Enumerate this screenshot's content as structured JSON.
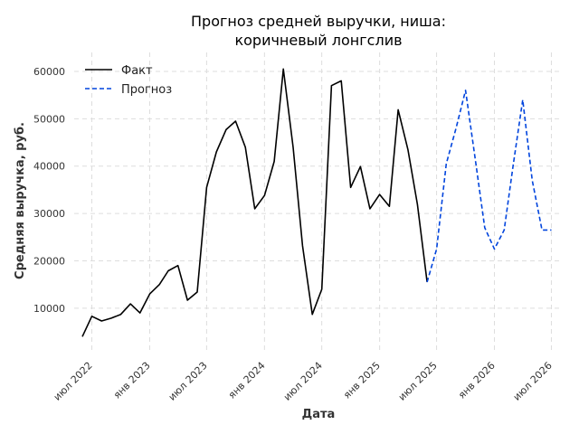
{
  "chart_data": {
    "type": "line",
    "title": [
      "Прогноз средней выручки, ниша:",
      "коричневый лонгслив"
    ],
    "xlabel": "Дата",
    "ylabel": "Средняя выручка, руб.",
    "ylim": [
      1000,
      64000
    ],
    "xlim": [
      "2022-05-06",
      "2026-08-06"
    ],
    "yticks": [
      10000,
      20000,
      30000,
      40000,
      50000,
      60000
    ],
    "xticks": [
      {
        "date": "2022-07-01",
        "label": "июл 2022"
      },
      {
        "date": "2023-01-01",
        "label": "янв 2023"
      },
      {
        "date": "2023-07-01",
        "label": "июл 2023"
      },
      {
        "date": "2024-01-01",
        "label": "янв 2024"
      },
      {
        "date": "2024-07-01",
        "label": "июл 2024"
      },
      {
        "date": "2025-01-01",
        "label": "янв 2025"
      },
      {
        "date": "2025-07-01",
        "label": "июл 2025"
      },
      {
        "date": "2026-01-01",
        "label": "янв 2026"
      },
      {
        "date": "2026-07-01",
        "label": "июл 2026"
      }
    ],
    "grid": true,
    "legend_position": "top-left",
    "series": [
      {
        "name": "Факт",
        "color": "#000000",
        "style": "solid",
        "x": [
          "2022-06-01",
          "2022-07-01",
          "2022-08-01",
          "2022-09-01",
          "2022-10-01",
          "2022-11-01",
          "2022-12-01",
          "2023-01-01",
          "2023-02-01",
          "2023-03-01",
          "2023-04-01",
          "2023-05-01",
          "2023-06-01",
          "2023-07-01",
          "2023-08-01",
          "2023-09-01",
          "2023-10-01",
          "2023-11-01",
          "2023-12-01",
          "2024-01-01",
          "2024-02-01",
          "2024-03-01",
          "2024-04-01",
          "2024-05-01",
          "2024-06-01",
          "2024-07-01",
          "2024-08-01",
          "2024-09-01",
          "2024-10-01",
          "2024-11-01",
          "2024-12-01",
          "2025-01-01",
          "2025-02-01",
          "2025-03-01",
          "2025-04-01",
          "2025-05-01",
          "2025-06-01"
        ],
        "y": [
          4000,
          8300,
          7300,
          7900,
          8700,
          10900,
          9000,
          13000,
          15000,
          17900,
          19000,
          11700,
          13400,
          35500,
          43000,
          47700,
          49500,
          44000,
          31000,
          33800,
          41000,
          60500,
          44000,
          23200,
          8700,
          14000,
          57000,
          58000,
          35500,
          39900,
          31000,
          34000,
          31500,
          51900,
          43500,
          31900,
          15500
        ]
      },
      {
        "name": "Прогноз",
        "color": "#0044dd",
        "style": "dashed",
        "x": [
          "2025-06-01",
          "2025-07-01",
          "2025-08-01",
          "2025-09-01",
          "2025-10-01",
          "2025-11-01",
          "2025-12-01",
          "2026-01-01",
          "2026-02-01",
          "2026-03-01",
          "2026-04-01",
          "2026-05-01",
          "2026-06-01",
          "2026-07-01"
        ],
        "y": [
          15500,
          22500,
          40500,
          48000,
          56000,
          41500,
          27000,
          22500,
          26500,
          40000,
          54000,
          37000,
          26500,
          26500
        ]
      }
    ]
  }
}
